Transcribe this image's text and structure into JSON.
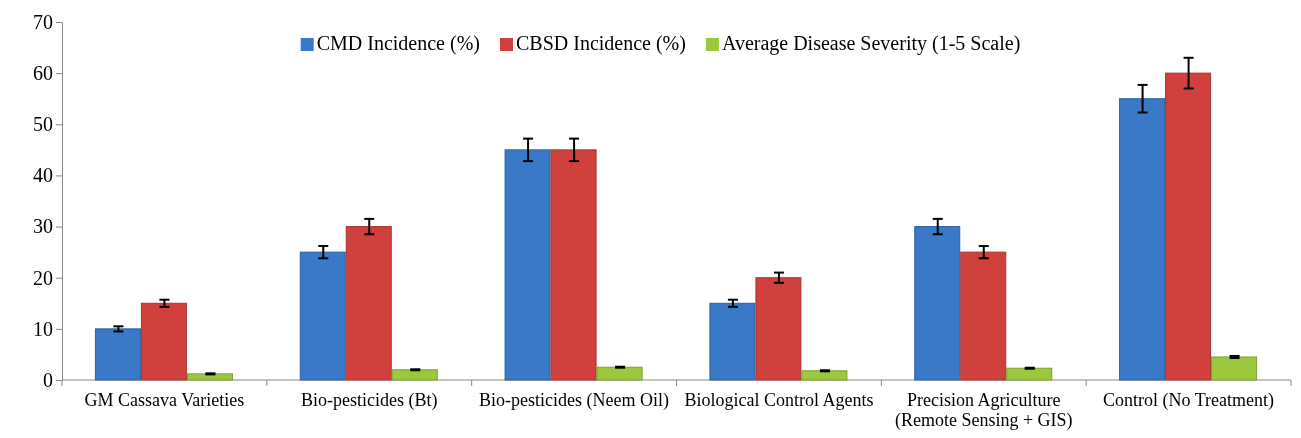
{
  "chart_data": {
    "type": "bar",
    "categories": [
      "GM Cassava Varieties",
      "Bio-pesticides (Bt)",
      "Bio-pesticides (Neem Oil)",
      "Biological Control Agents",
      "Precision Agriculture (Remote Sensing + GIS)",
      "Control (No Treatment)"
    ],
    "series": [
      {
        "name": "CMD Incidence (%)",
        "color": "#3a78c8",
        "values": [
          10,
          25,
          45,
          15,
          30,
          55
        ],
        "errors": [
          0.5,
          1.2,
          2.2,
          0.7,
          1.5,
          2.7
        ]
      },
      {
        "name": "CBSD Incidence (%)",
        "color": "#d0403c",
        "values": [
          15,
          30,
          45,
          20,
          25,
          60
        ],
        "errors": [
          0.7,
          1.5,
          2.2,
          1,
          1.2,
          3
        ]
      },
      {
        "name": "Average Disease Severity (1-5 Scale)",
        "color": "#9bc83c",
        "values": [
          1.2,
          2,
          2.5,
          1.8,
          2.3,
          4.5
        ],
        "errors": [
          0.1,
          0.1,
          0.1,
          0.1,
          0.1,
          0.2
        ]
      }
    ],
    "ylim": [
      0,
      70
    ],
    "yticks": [
      0,
      10,
      20,
      30,
      40,
      50,
      60,
      70
    ],
    "grid": false,
    "legend": "top"
  }
}
